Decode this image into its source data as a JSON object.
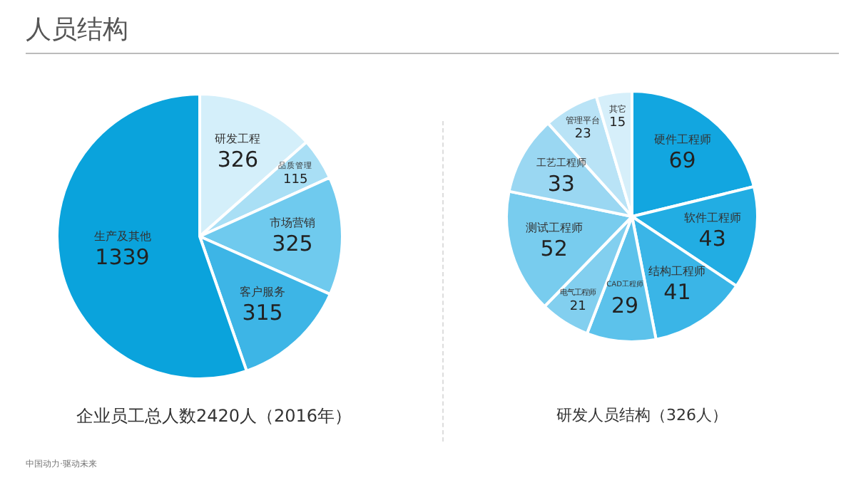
{
  "chart_data": [
    {
      "type": "pie",
      "title": "人员结构",
      "categories": [
        "研发工程",
        "品质管理",
        "市场营销",
        "客户服务",
        "生产及其他"
      ],
      "values": [
        326,
        115,
        325,
        315,
        1339
      ],
      "colors": [
        "#d4effa",
        "#a9dff5",
        "#6fcaee",
        "#3db5e6",
        "#0aa3dc"
      ],
      "data_labels": true,
      "legend": false,
      "annotations": [
        "企业员工总人数2420人（2016年）",
        "中国动力·驱动未来"
      ]
    },
    {
      "type": "pie",
      "categories": [
        "硬件工程师",
        "软件工程师",
        "结构工程师",
        "CAD工程师",
        "电气工程师",
        "测试工程师",
        "工艺工程师",
        "管理平台",
        "其它"
      ],
      "values": [
        69,
        43,
        41,
        29,
        21,
        52,
        33,
        23,
        15
      ],
      "colors": [
        "#12a6e0",
        "#22ade3",
        "#3ab5e7",
        "#5cc2eb",
        "#82cfef",
        "#78ccee",
        "#9ad7f2",
        "#b9e3f6",
        "#d6effa"
      ],
      "data_labels": true,
      "legend": false,
      "annotations": [
        "研发人员结构（326人）"
      ]
    }
  ]
}
